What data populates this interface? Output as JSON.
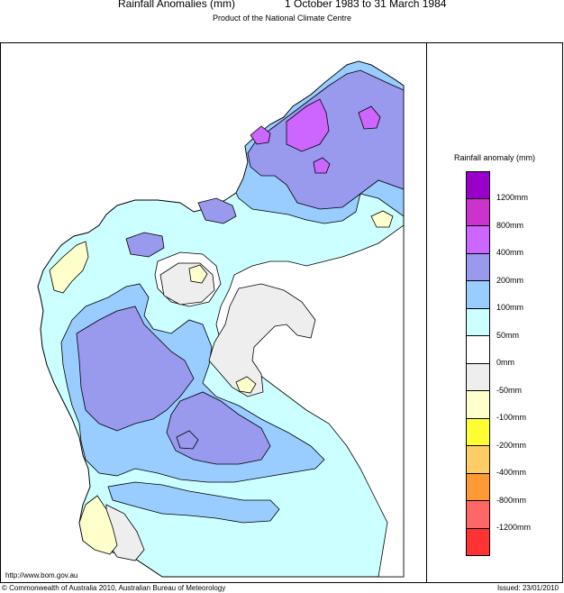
{
  "header": {
    "title": "Rainfall Anomalies (mm)",
    "period": "1 October 1983 to 31 March 1984",
    "subtitle": "Product of the National Climate Centre"
  },
  "legend": {
    "title": "Rainfall anomaly (mm)",
    "bins": [
      {
        "label": "1200mm",
        "color": "#9900cc"
      },
      {
        "label": "",
        "color": "#cc33cc"
      },
      {
        "label": "800mm",
        "color": "#cc66ff"
      },
      {
        "label": "",
        "color": "#9999ee"
      },
      {
        "label": "400mm",
        "color": "#99ccff"
      },
      {
        "label": "",
        "color": "#ccffff"
      },
      {
        "label": "200mm",
        "color": "#ffffff"
      },
      {
        "label": "",
        "color": "#eeeeee"
      },
      {
        "label": "100mm",
        "color": "#ffffcc"
      },
      {
        "label": "",
        "color": "#ffff33"
      },
      {
        "label": "50mm",
        "color": "#ffcc66"
      },
      {
        "label": "",
        "color": "#ff9933"
      },
      {
        "label": "0mm",
        "color": "#ff6666"
      },
      {
        "label": "",
        "color": "#ff3333"
      }
    ],
    "tick_labels": [
      "1200mm",
      "800mm",
      "400mm",
      "200mm",
      "100mm",
      "50mm",
      "0mm",
      "-50mm",
      "-100mm",
      "-200mm",
      "-400mm",
      "-800mm",
      "-1200mm"
    ]
  },
  "footer": {
    "url": "http://www.bom.gov.au",
    "copyright": "© Commonwealth of Australia 2010, Australian Bureau of Meteorology",
    "issued": "Issued: 23/01/2010"
  }
}
